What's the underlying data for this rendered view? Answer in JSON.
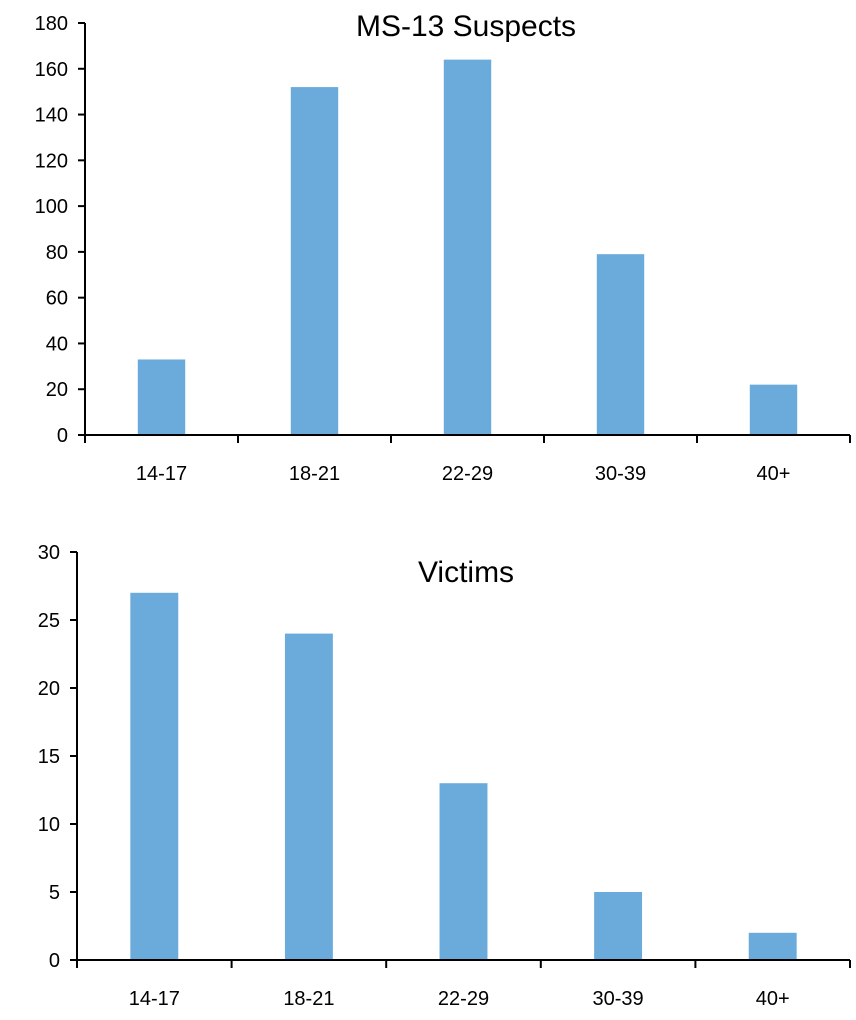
{
  "chart_data": [
    {
      "type": "bar",
      "title": "MS-13 Suspects",
      "categories": [
        "14-17",
        "18-21",
        "22-29",
        "30-39",
        "40+"
      ],
      "values": [
        33,
        152,
        164,
        79,
        22
      ],
      "ylim": [
        0,
        180
      ],
      "yticks": [
        0,
        20,
        40,
        60,
        80,
        100,
        120,
        140,
        160,
        180
      ],
      "xlabel": "",
      "ylabel": "",
      "grid": false,
      "bar_color": "#6aabdb"
    },
    {
      "type": "bar",
      "title": "Victims",
      "categories": [
        "14-17",
        "18-21",
        "22-29",
        "30-39",
        "40+"
      ],
      "values": [
        27,
        24,
        13,
        5,
        2
      ],
      "ylim": [
        0,
        30
      ],
      "yticks": [
        0,
        5,
        10,
        15,
        20,
        25,
        30
      ],
      "xlabel": "",
      "ylabel": "",
      "grid": false,
      "bar_color": "#6aabdb"
    }
  ]
}
